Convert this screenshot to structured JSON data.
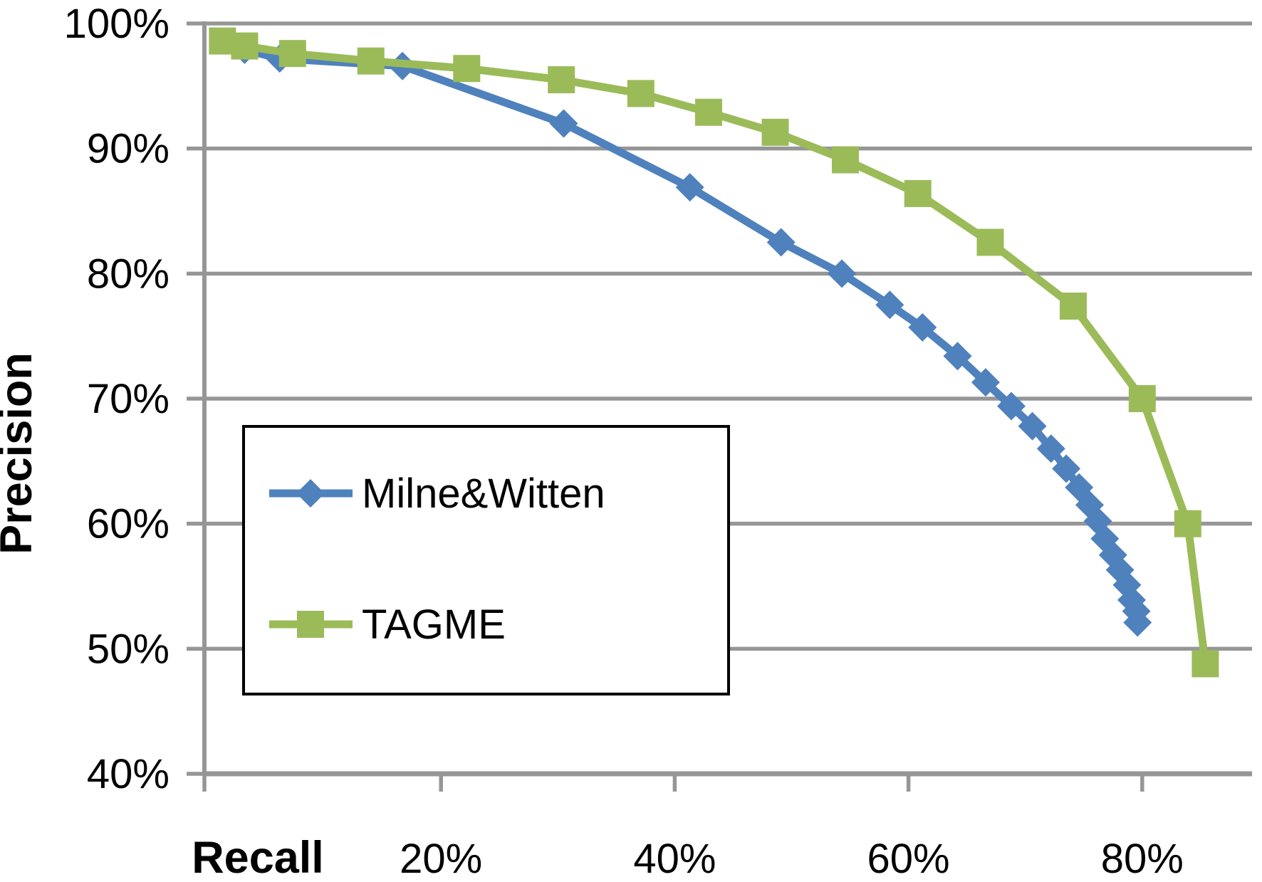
{
  "chart_data": {
    "type": "line",
    "title": "",
    "xlabel": "Recall",
    "ylabel": "Precision",
    "grid": "horizontal",
    "background": "#ffffff",
    "gridline_color": "#969696",
    "axis_color": "#969696",
    "x_axis": {
      "min": 0,
      "max": 89.5,
      "tick_values": [
        20,
        40,
        60,
        80
      ],
      "tick_labels": [
        "20%",
        "40%",
        "60%",
        "80%"
      ]
    },
    "y_axis": {
      "min": 40,
      "max": 100,
      "tick_values": [
        100,
        90,
        80,
        70,
        60,
        50,
        40
      ],
      "tick_labels": [
        "100%",
        "90%",
        "80%",
        "70%",
        "60%",
        "50%",
        "40%"
      ]
    },
    "legend": {
      "position": "center-left",
      "border_color": "#000000",
      "fill": "#ffffff"
    },
    "series": [
      {
        "name": "Milne&Witten",
        "color": "#4F81BD",
        "marker": "diamond",
        "points": [
          [
            3.2,
            97.9
          ],
          [
            6.2,
            97.2
          ],
          [
            16.7,
            96.6
          ],
          [
            30.5,
            92.0
          ],
          [
            41.3,
            86.9
          ],
          [
            49.1,
            82.5
          ],
          [
            54.3,
            80.0
          ],
          [
            58.4,
            77.5
          ],
          [
            61.2,
            75.7
          ],
          [
            64.2,
            73.4
          ],
          [
            66.6,
            71.3
          ],
          [
            68.8,
            69.4
          ],
          [
            70.6,
            67.8
          ],
          [
            72.2,
            66.0
          ],
          [
            73.5,
            64.4
          ],
          [
            74.6,
            62.9
          ],
          [
            75.5,
            61.5
          ],
          [
            76.2,
            60.2
          ],
          [
            76.8,
            58.8
          ],
          [
            77.5,
            57.5
          ],
          [
            78.1,
            56.3
          ],
          [
            78.7,
            55.1
          ],
          [
            79.1,
            53.9
          ],
          [
            79.5,
            53.0
          ],
          [
            79.6,
            52.1
          ]
        ]
      },
      {
        "name": "TAGME",
        "color": "#9BBB59",
        "marker": "square",
        "points": [
          [
            1.3,
            98.6
          ],
          [
            3.2,
            98.2
          ],
          [
            7.3,
            97.6
          ],
          [
            14.0,
            97.0
          ],
          [
            22.2,
            96.4
          ],
          [
            30.3,
            95.5
          ],
          [
            37.1,
            94.4
          ],
          [
            42.9,
            92.9
          ],
          [
            48.6,
            91.3
          ],
          [
            54.6,
            89.1
          ],
          [
            60.8,
            86.4
          ],
          [
            67.0,
            82.5
          ],
          [
            74.1,
            77.4
          ],
          [
            80.0,
            70.0
          ],
          [
            83.9,
            60.0
          ],
          [
            85.4,
            48.8
          ]
        ]
      }
    ]
  }
}
